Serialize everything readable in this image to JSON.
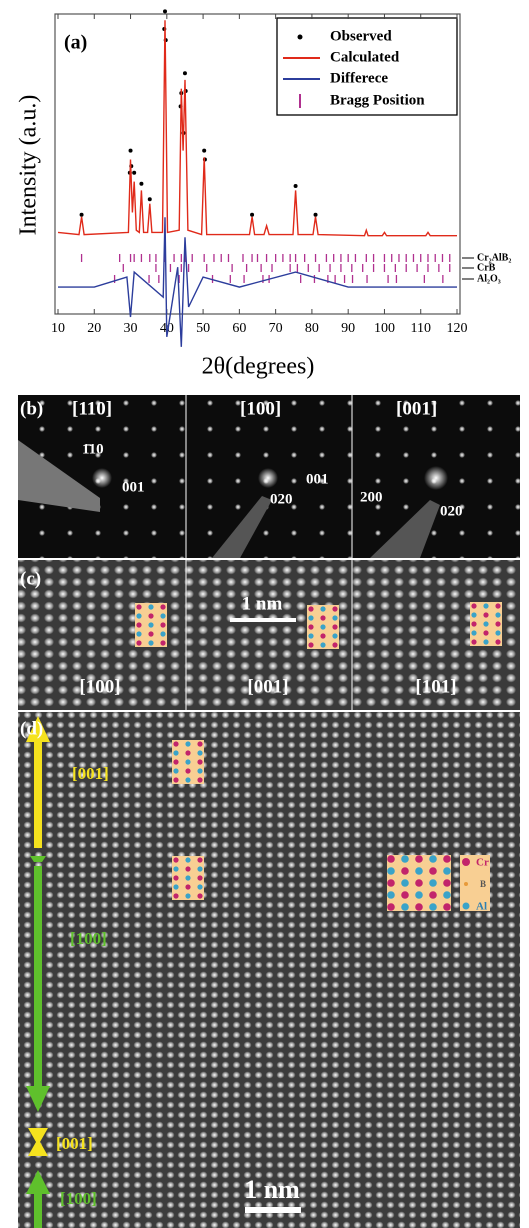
{
  "chart_data": {
    "type": "line",
    "panel_label": "(a)",
    "x_label": "2θ(degrees)",
    "y_label": "Intensity (a.u.)",
    "xlim": [
      10,
      120
    ],
    "xticks": [
      10,
      20,
      30,
      40,
      50,
      60,
      70,
      80,
      90,
      100,
      110,
      120
    ],
    "ylim": [
      -33,
      100
    ],
    "y2lim": [
      -5,
      54
    ],
    "series": [
      {
        "name": "Observed",
        "color": "#000000",
        "type": "scatter",
        "x": [
          16.5,
          29.8,
          30,
          30.2,
          31,
          33,
          35.3,
          39.3,
          39.5,
          39.7,
          43.8,
          44,
          44.6,
          45,
          45.2,
          50.3,
          50.5,
          63.5,
          75.5,
          81
        ],
        "values": [
          11,
          30,
          40,
          33,
          30,
          25,
          18,
          95,
          103,
          90,
          60,
          66,
          48,
          75,
          67,
          40,
          36,
          11,
          24,
          11
        ]
      },
      {
        "name": "Calculated",
        "color": "#e02a1a",
        "x": [
          10,
          15.8,
          16.5,
          17.2,
          29.4,
          30,
          30.5,
          31,
          31.6,
          32.4,
          33,
          33.6,
          34.7,
          35.3,
          35.9,
          38.8,
          39.5,
          40.2,
          43.4,
          44,
          44.5,
          45,
          45.8,
          49.6,
          50.3,
          51,
          62.8,
          63.5,
          64.2,
          66.8,
          67.5,
          68.2,
          74.8,
          75.5,
          76.2,
          80.3,
          81,
          81.7,
          94.5,
          95,
          95.5,
          99.4,
          100,
          100.6,
          111.4,
          112,
          112.6,
          120
        ],
        "values": [
          3,
          2,
          10,
          2,
          3,
          36,
          12,
          26,
          4,
          3,
          22,
          3,
          3,
          16,
          3,
          3,
          99,
          3,
          4,
          68,
          40,
          72,
          4,
          2,
          37,
          2,
          2,
          10,
          2,
          2,
          6,
          2,
          2,
          22,
          2,
          2,
          10,
          2,
          1.5,
          4,
          1.5,
          1.5,
          3,
          1.5,
          1.5,
          3,
          1.5,
          1.5
        ]
      },
      {
        "name": "Differece",
        "color": "#2c3d9c",
        "axis": "y2",
        "x": [
          10,
          20,
          29,
          30,
          31,
          39,
          39.5,
          40,
          43,
          44,
          45,
          46,
          50,
          60,
          75.5,
          90,
          120
        ],
        "values": [
          0,
          0,
          2,
          -6,
          3,
          -2,
          14,
          -10,
          4,
          -12,
          10,
          -4,
          2,
          0,
          3,
          0,
          0
        ]
      }
    ],
    "bragg": {
      "name": "Bragg Position",
      "color": "#b0308f",
      "phases": [
        {
          "name": "Cr₂AlB₂",
          "x": [
            16.5,
            27,
            30,
            31,
            33,
            35.3,
            37,
            39.5,
            42,
            44,
            45,
            47,
            50.3,
            53,
            55,
            57,
            61,
            63.5,
            65,
            67.5,
            70,
            72,
            74,
            75.5,
            78,
            81,
            84,
            86,
            88,
            90,
            92,
            95,
            97,
            100,
            102,
            104,
            106,
            108,
            110,
            112,
            114,
            116,
            118
          ]
        },
        {
          "name": "CrB",
          "x": [
            28,
            37,
            41,
            44,
            46,
            51,
            58,
            62,
            66,
            69,
            74,
            76,
            79,
            82,
            85,
            88,
            91,
            94,
            97,
            100,
            103,
            106,
            109,
            112,
            115,
            118
          ]
        },
        {
          "name": "Al₂O₃",
          "x": [
            25.6,
            35.1,
            37.8,
            43.4,
            52.6,
            57.5,
            61.3,
            66.5,
            68.2,
            76.9,
            80.7,
            84.4,
            86.4,
            89,
            91.2,
            95.2,
            101,
            103.3,
            111,
            116.1
          ]
        }
      ]
    }
  },
  "panel_b": {
    "label": "(b)",
    "zones": [
      "[110]",
      "[100]",
      "[001]"
    ],
    "spots": [
      "1̄10",
      "001",
      "001",
      "020",
      "200",
      "020"
    ]
  },
  "panel_c": {
    "label": "(c)",
    "scale": "1 nm",
    "zones": [
      "[100]",
      "[001]",
      "[101]"
    ]
  },
  "panel_d": {
    "label": "(d)",
    "directions": [
      "[001]",
      "[100]",
      "[001]",
      "[100]"
    ],
    "atoms": [
      "Cr",
      "B",
      "Al"
    ],
    "scale": "1 nm"
  }
}
